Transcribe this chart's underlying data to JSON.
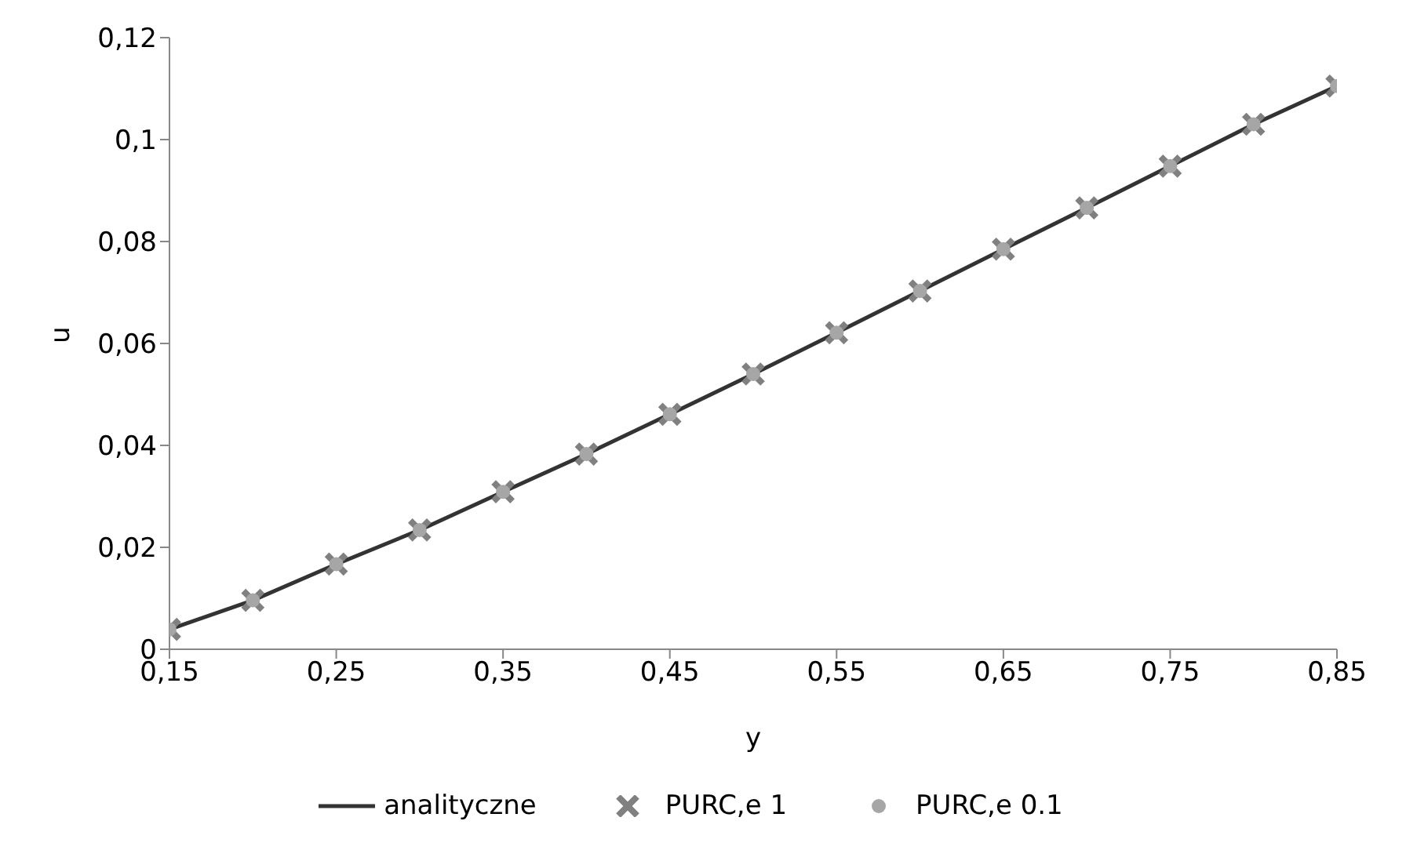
{
  "chart_data": {
    "type": "line",
    "xlabel": "y",
    "ylabel": "u",
    "x": [
      0.15,
      0.2,
      0.25,
      0.3,
      0.35,
      0.4,
      0.45,
      0.5,
      0.55,
      0.6,
      0.65,
      0.7,
      0.75,
      0.8,
      0.85
    ],
    "series": [
      {
        "name": "analityczne",
        "color": "#333333",
        "marker": "none",
        "line_style": "solid",
        "values": [
          0.0039,
          0.0096,
          0.0167,
          0.0234,
          0.0309,
          0.0383,
          0.0461,
          0.054,
          0.0621,
          0.0703,
          0.0785,
          0.0866,
          0.0948,
          0.103,
          0.1105
        ]
      },
      {
        "name": "PURC,e  1",
        "type": "scatter",
        "color": "#808080",
        "marker": "cross",
        "values": [
          0.0039,
          0.0096,
          0.0167,
          0.0234,
          0.0309,
          0.0383,
          0.0461,
          0.054,
          0.0621,
          0.0703,
          0.0785,
          0.0866,
          0.0948,
          0.103,
          0.1105
        ]
      },
      {
        "name": "PURC,e  0.1",
        "type": "scatter",
        "color": "#a6a6a6",
        "marker": "circle",
        "values": [
          0.0039,
          0.0096,
          0.0167,
          0.0234,
          0.0309,
          0.0383,
          0.0461,
          0.054,
          0.0621,
          0.0703,
          0.0785,
          0.0866,
          0.0948,
          0.103,
          0.1105
        ]
      }
    ],
    "xlim": [
      0.15,
      0.85
    ],
    "xticks": [
      {
        "value": 0.15,
        "label": "0,15"
      },
      {
        "value": 0.25,
        "label": "0,25"
      },
      {
        "value": 0.35,
        "label": "0,35"
      },
      {
        "value": 0.45,
        "label": "0,45"
      },
      {
        "value": 0.55,
        "label": "0,55"
      },
      {
        "value": 0.65,
        "label": "0,65"
      },
      {
        "value": 0.75,
        "label": "0,75"
      },
      {
        "value": 0.85,
        "label": "0,85"
      }
    ],
    "ylim": [
      0,
      0.12
    ],
    "yticks": [
      0,
      {
        "value": 0.02,
        "label": "0,02"
      },
      {
        "value": 0.04,
        "label": "0,04"
      },
      {
        "value": 0.06,
        "label": "0,06"
      },
      {
        "value": 0.08,
        "label": "0,08"
      },
      {
        "value": 0.1,
        "label": "0,1"
      },
      {
        "value": 0.12,
        "label": "0,12"
      }
    ],
    "grid": false,
    "legend": "bottom"
  }
}
